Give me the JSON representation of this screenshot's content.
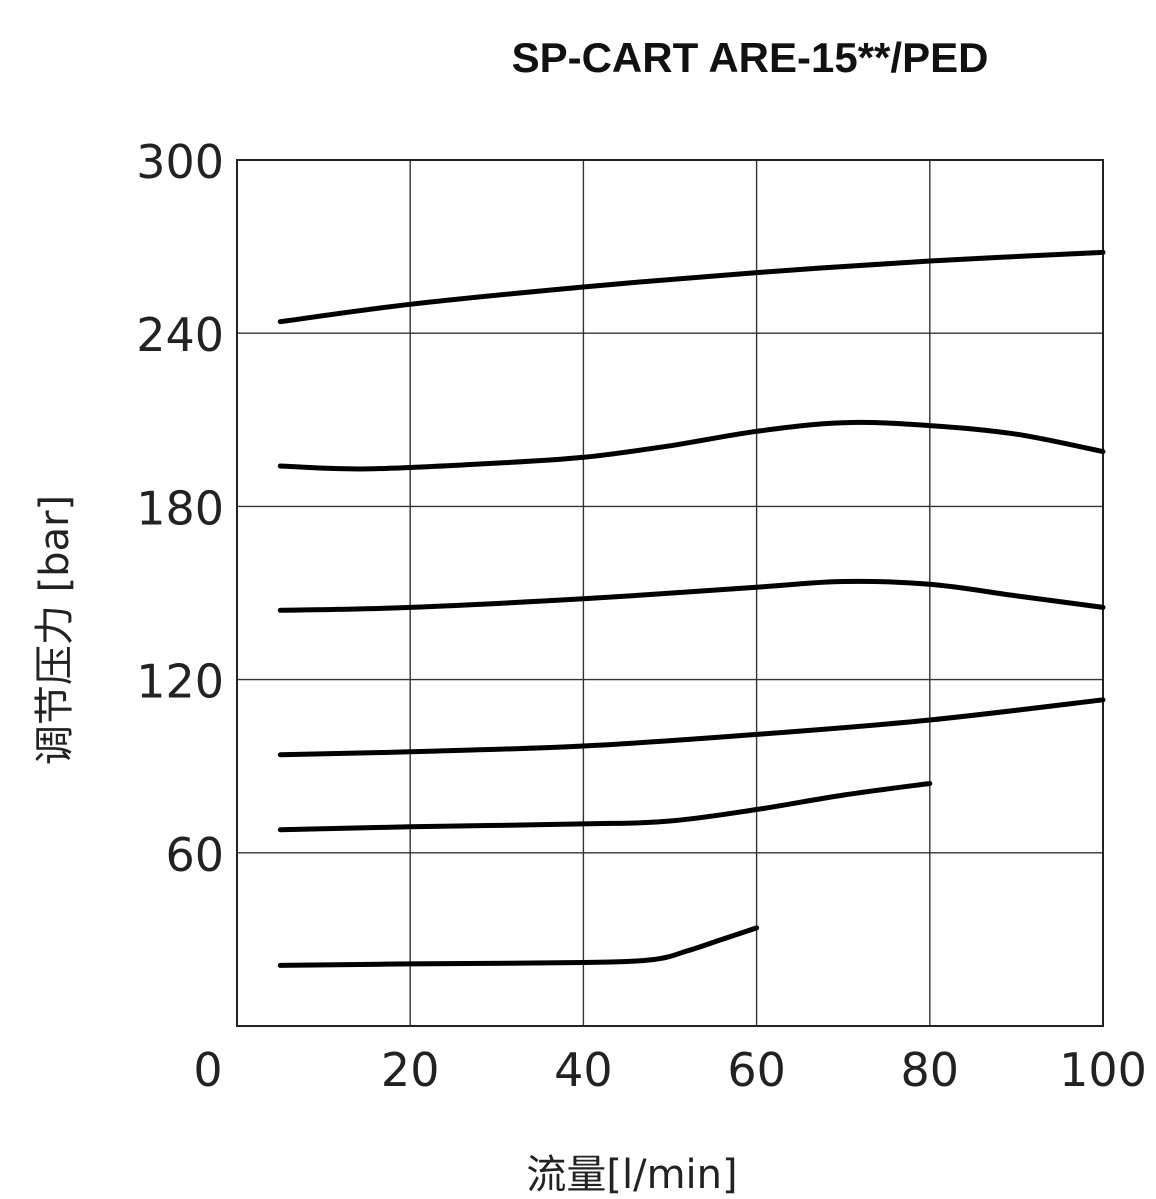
{
  "chart_data": {
    "type": "line",
    "title": "SP-CART ARE-15**/PED",
    "xlabel": "流量[l/min]",
    "ylabel": "调节压力 [bar]",
    "xlim": [
      0,
      100
    ],
    "ylim": [
      0,
      300
    ],
    "xticks": [
      "0",
      "20",
      "40",
      "60",
      "80",
      "100"
    ],
    "yticks": [
      "60",
      "120",
      "180",
      "240",
      "300"
    ],
    "x_tick_values": [
      0,
      20,
      40,
      60,
      80,
      100
    ],
    "y_tick_values": [
      60,
      120,
      180,
      240,
      300
    ],
    "grid": true,
    "series": [
      {
        "x": [
          5,
          20,
          40,
          60,
          80,
          100
        ],
        "y": [
          244,
          250,
          256,
          261,
          265,
          268
        ]
      },
      {
        "x": [
          5,
          15,
          30,
          40,
          50,
          60,
          70,
          80,
          90,
          100
        ],
        "y": [
          194,
          193,
          195,
          197,
          201,
          206,
          209,
          208,
          205,
          199
        ]
      },
      {
        "x": [
          5,
          20,
          40,
          60,
          70,
          80,
          90,
          100
        ],
        "y": [
          144,
          145,
          148,
          152,
          154,
          153,
          149,
          145
        ]
      },
      {
        "x": [
          5,
          20,
          40,
          60,
          80,
          100
        ],
        "y": [
          94,
          95,
          97,
          101,
          106,
          113
        ]
      },
      {
        "x": [
          5,
          20,
          40,
          50,
          60,
          70,
          80
        ],
        "y": [
          68,
          69,
          70,
          71,
          75,
          80,
          84
        ]
      },
      {
        "x": [
          5,
          20,
          40,
          48,
          52,
          56,
          60
        ],
        "y": [
          21,
          21.5,
          22,
          23,
          26,
          30,
          34
        ]
      }
    ]
  }
}
